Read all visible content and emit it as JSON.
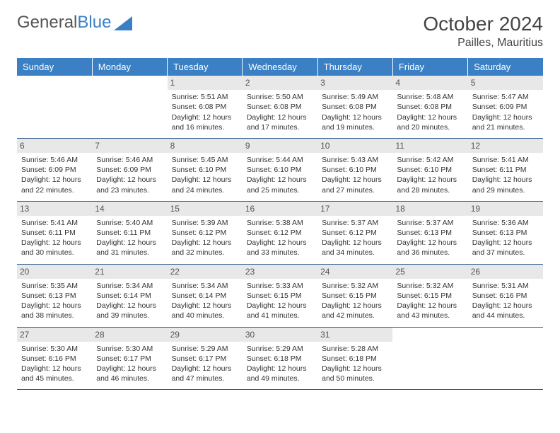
{
  "logo": {
    "text1": "General",
    "text2": "Blue"
  },
  "title": "October 2024",
  "location": "Pailles, Mauritius",
  "colors": {
    "header_bg": "#3b7fc4",
    "header_text": "#ffffff",
    "row_divider": "#2c5a8a",
    "daynum_bg": "#e8e8e8",
    "body_bg": "#ffffff"
  },
  "day_headers": [
    "Sunday",
    "Monday",
    "Tuesday",
    "Wednesday",
    "Thursday",
    "Friday",
    "Saturday"
  ],
  "days": {
    "1": {
      "sunrise": "5:51 AM",
      "sunset": "6:08 PM",
      "daylight": "12 hours and 16 minutes."
    },
    "2": {
      "sunrise": "5:50 AM",
      "sunset": "6:08 PM",
      "daylight": "12 hours and 17 minutes."
    },
    "3": {
      "sunrise": "5:49 AM",
      "sunset": "6:08 PM",
      "daylight": "12 hours and 19 minutes."
    },
    "4": {
      "sunrise": "5:48 AM",
      "sunset": "6:08 PM",
      "daylight": "12 hours and 20 minutes."
    },
    "5": {
      "sunrise": "5:47 AM",
      "sunset": "6:09 PM",
      "daylight": "12 hours and 21 minutes."
    },
    "6": {
      "sunrise": "5:46 AM",
      "sunset": "6:09 PM",
      "daylight": "12 hours and 22 minutes."
    },
    "7": {
      "sunrise": "5:46 AM",
      "sunset": "6:09 PM",
      "daylight": "12 hours and 23 minutes."
    },
    "8": {
      "sunrise": "5:45 AM",
      "sunset": "6:10 PM",
      "daylight": "12 hours and 24 minutes."
    },
    "9": {
      "sunrise": "5:44 AM",
      "sunset": "6:10 PM",
      "daylight": "12 hours and 25 minutes."
    },
    "10": {
      "sunrise": "5:43 AM",
      "sunset": "6:10 PM",
      "daylight": "12 hours and 27 minutes."
    },
    "11": {
      "sunrise": "5:42 AM",
      "sunset": "6:10 PM",
      "daylight": "12 hours and 28 minutes."
    },
    "12": {
      "sunrise": "5:41 AM",
      "sunset": "6:11 PM",
      "daylight": "12 hours and 29 minutes."
    },
    "13": {
      "sunrise": "5:41 AM",
      "sunset": "6:11 PM",
      "daylight": "12 hours and 30 minutes."
    },
    "14": {
      "sunrise": "5:40 AM",
      "sunset": "6:11 PM",
      "daylight": "12 hours and 31 minutes."
    },
    "15": {
      "sunrise": "5:39 AM",
      "sunset": "6:12 PM",
      "daylight": "12 hours and 32 minutes."
    },
    "16": {
      "sunrise": "5:38 AM",
      "sunset": "6:12 PM",
      "daylight": "12 hours and 33 minutes."
    },
    "17": {
      "sunrise": "5:37 AM",
      "sunset": "6:12 PM",
      "daylight": "12 hours and 34 minutes."
    },
    "18": {
      "sunrise": "5:37 AM",
      "sunset": "6:13 PM",
      "daylight": "12 hours and 36 minutes."
    },
    "19": {
      "sunrise": "5:36 AM",
      "sunset": "6:13 PM",
      "daylight": "12 hours and 37 minutes."
    },
    "20": {
      "sunrise": "5:35 AM",
      "sunset": "6:13 PM",
      "daylight": "12 hours and 38 minutes."
    },
    "21": {
      "sunrise": "5:34 AM",
      "sunset": "6:14 PM",
      "daylight": "12 hours and 39 minutes."
    },
    "22": {
      "sunrise": "5:34 AM",
      "sunset": "6:14 PM",
      "daylight": "12 hours and 40 minutes."
    },
    "23": {
      "sunrise": "5:33 AM",
      "sunset": "6:15 PM",
      "daylight": "12 hours and 41 minutes."
    },
    "24": {
      "sunrise": "5:32 AM",
      "sunset": "6:15 PM",
      "daylight": "12 hours and 42 minutes."
    },
    "25": {
      "sunrise": "5:32 AM",
      "sunset": "6:15 PM",
      "daylight": "12 hours and 43 minutes."
    },
    "26": {
      "sunrise": "5:31 AM",
      "sunset": "6:16 PM",
      "daylight": "12 hours and 44 minutes."
    },
    "27": {
      "sunrise": "5:30 AM",
      "sunset": "6:16 PM",
      "daylight": "12 hours and 45 minutes."
    },
    "28": {
      "sunrise": "5:30 AM",
      "sunset": "6:17 PM",
      "daylight": "12 hours and 46 minutes."
    },
    "29": {
      "sunrise": "5:29 AM",
      "sunset": "6:17 PM",
      "daylight": "12 hours and 47 minutes."
    },
    "30": {
      "sunrise": "5:29 AM",
      "sunset": "6:18 PM",
      "daylight": "12 hours and 49 minutes."
    },
    "31": {
      "sunrise": "5:28 AM",
      "sunset": "6:18 PM",
      "daylight": "12 hours and 50 minutes."
    }
  },
  "grid": [
    [
      null,
      null,
      "1",
      "2",
      "3",
      "4",
      "5"
    ],
    [
      "6",
      "7",
      "8",
      "9",
      "10",
      "11",
      "12"
    ],
    [
      "13",
      "14",
      "15",
      "16",
      "17",
      "18",
      "19"
    ],
    [
      "20",
      "21",
      "22",
      "23",
      "24",
      "25",
      "26"
    ],
    [
      "27",
      "28",
      "29",
      "30",
      "31",
      null,
      null
    ]
  ],
  "labels": {
    "sunrise_prefix": "Sunrise: ",
    "sunset_prefix": "Sunset: ",
    "daylight_prefix": "Daylight: "
  }
}
